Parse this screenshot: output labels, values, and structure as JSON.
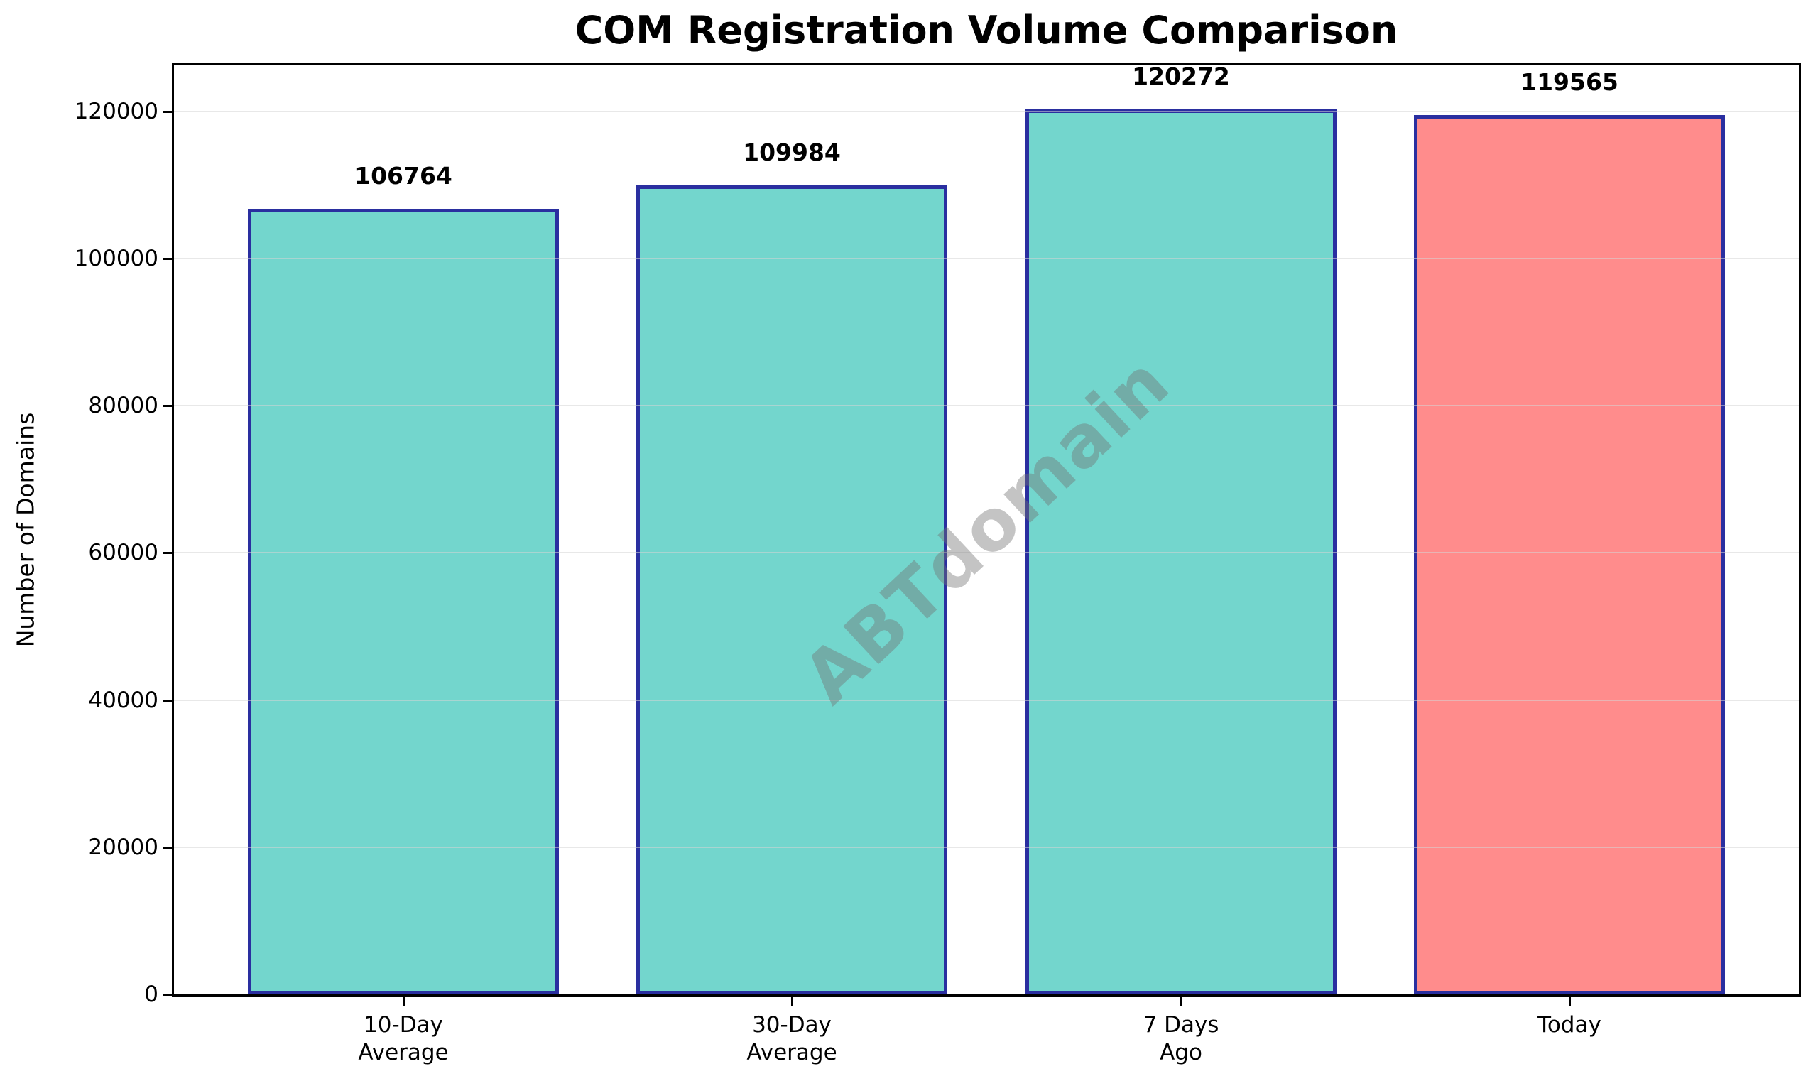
{
  "chart_data": {
    "type": "bar",
    "title": "COM Registration Volume Comparison",
    "ylabel": "Number of Domains",
    "xlabel": "",
    "categories": [
      "10-Day\nAverage",
      "30-Day\nAverage",
      "7 Days\nAgo",
      "Today"
    ],
    "values": [
      106764,
      109984,
      120272,
      119565
    ],
    "value_labels": [
      "106764",
      "109984",
      "120272",
      "119565"
    ],
    "yticks": [
      0,
      20000,
      40000,
      60000,
      80000,
      100000,
      120000
    ],
    "ylim": [
      0,
      126275
    ],
    "grid": true,
    "legend": "none",
    "watermark": "ABTdomain",
    "bar_colors": [
      "#73D6CD",
      "#73D6CD",
      "#73D6CD",
      "#FF8C8C"
    ],
    "colors": {
      "bar_default": "#73D6CD",
      "bar_highlight": "#FF8C8C",
      "bar_edge": "#2A2FA0",
      "grid": "#DCDCDC",
      "spine": "#000000",
      "text": "#000000",
      "watermark_gray": "#737373"
    }
  }
}
